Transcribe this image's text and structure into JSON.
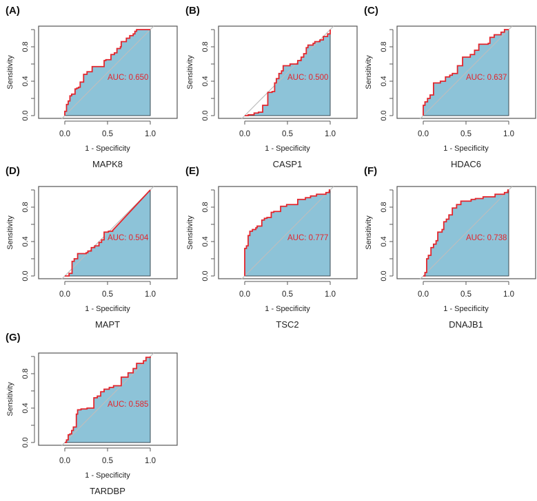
{
  "chart_data": [
    {
      "type": "line",
      "panel": "(A)",
      "title": "MAPK8",
      "auc": "AUC: 0.650",
      "xlabel": "1 - Specificity",
      "ylabel": "Sensitivity",
      "xticks": [
        "0.0",
        "0.5",
        "1.0"
      ],
      "yticks": [
        "0.0",
        "0.4",
        "0.8"
      ],
      "xlim": [
        0,
        1
      ],
      "ylim": [
        0,
        1
      ],
      "points": [
        [
          0,
          0
        ],
        [
          0,
          0.05
        ],
        [
          0.02,
          0.13
        ],
        [
          0.04,
          0.17
        ],
        [
          0.06,
          0.23
        ],
        [
          0.08,
          0.25
        ],
        [
          0.12,
          0.31
        ],
        [
          0.14,
          0.32
        ],
        [
          0.16,
          0.33
        ],
        [
          0.18,
          0.39
        ],
        [
          0.22,
          0.48
        ],
        [
          0.26,
          0.51
        ],
        [
          0.32,
          0.57
        ],
        [
          0.46,
          0.64
        ],
        [
          0.48,
          0.65
        ],
        [
          0.54,
          0.71
        ],
        [
          0.58,
          0.73
        ],
        [
          0.61,
          0.78
        ],
        [
          0.65,
          0.8
        ],
        [
          0.66,
          0.86
        ],
        [
          0.72,
          0.9
        ],
        [
          0.76,
          0.93
        ],
        [
          0.8,
          0.95
        ],
        [
          0.82,
          0.98
        ],
        [
          0.84,
          1
        ],
        [
          1,
          1
        ]
      ]
    },
    {
      "type": "line",
      "panel": "(B)",
      "title": "CASP1",
      "auc": "AUC: 0.500",
      "xlabel": "1 - Specificity",
      "ylabel": "Sensitivity",
      "xticks": [
        "0.0",
        "0.5",
        "1.0"
      ],
      "yticks": [
        "0.0",
        "0.4",
        "0.8"
      ],
      "xlim": [
        0,
        1
      ],
      "ylim": [
        0,
        1
      ],
      "points": [
        [
          0,
          0
        ],
        [
          0.04,
          0.01
        ],
        [
          0.11,
          0.03
        ],
        [
          0.16,
          0.04
        ],
        [
          0.21,
          0.12
        ],
        [
          0.27,
          0.27
        ],
        [
          0.32,
          0.28
        ],
        [
          0.35,
          0.38
        ],
        [
          0.37,
          0.43
        ],
        [
          0.4,
          0.49
        ],
        [
          0.43,
          0.52
        ],
        [
          0.45,
          0.58
        ],
        [
          0.53,
          0.6
        ],
        [
          0.62,
          0.64
        ],
        [
          0.66,
          0.68
        ],
        [
          0.69,
          0.72
        ],
        [
          0.72,
          0.79
        ],
        [
          0.74,
          0.82
        ],
        [
          0.8,
          0.84
        ],
        [
          0.82,
          0.86
        ],
        [
          0.88,
          0.88
        ],
        [
          0.92,
          0.92
        ],
        [
          0.97,
          0.95
        ],
        [
          1,
          0.97
        ],
        [
          1,
          1
        ]
      ]
    },
    {
      "type": "line",
      "panel": "(C)",
      "title": "HDAC6",
      "auc": "AUC: 0.637",
      "xlabel": "1 - Specificity",
      "ylabel": "Sensitivity",
      "xticks": [
        "0.0",
        "0.5",
        "1.0"
      ],
      "yticks": [
        "0.0",
        "0.4",
        "0.8"
      ],
      "xlim": [
        0,
        1
      ],
      "ylim": [
        0,
        1
      ],
      "points": [
        [
          0,
          0
        ],
        [
          0,
          0.12
        ],
        [
          0.02,
          0.16
        ],
        [
          0.05,
          0.2
        ],
        [
          0.08,
          0.24
        ],
        [
          0.12,
          0.38
        ],
        [
          0.2,
          0.4
        ],
        [
          0.26,
          0.45
        ],
        [
          0.31,
          0.47
        ],
        [
          0.34,
          0.49
        ],
        [
          0.4,
          0.58
        ],
        [
          0.46,
          0.68
        ],
        [
          0.55,
          0.71
        ],
        [
          0.6,
          0.76
        ],
        [
          0.65,
          0.83
        ],
        [
          0.76,
          0.84
        ],
        [
          0.78,
          0.91
        ],
        [
          0.83,
          0.94
        ],
        [
          0.91,
          0.97
        ],
        [
          0.95,
          1
        ],
        [
          1,
          1
        ]
      ]
    },
    {
      "type": "line",
      "panel": "(D)",
      "title": "MAPT",
      "auc": "AUC: 0.504",
      "xlabel": "1 - Specificity",
      "ylabel": "Sensitivity",
      "xticks": [
        "0.0",
        "0.5",
        "1.0"
      ],
      "yticks": [
        "0.0",
        "0.4",
        "0.8"
      ],
      "xlim": [
        0,
        1
      ],
      "ylim": [
        0,
        1
      ],
      "linear_tail": true,
      "points": [
        [
          0,
          0
        ],
        [
          0.05,
          0.03
        ],
        [
          0.085,
          0.17
        ],
        [
          0.11,
          0.2
        ],
        [
          0.15,
          0.26
        ],
        [
          0.25,
          0.27
        ],
        [
          0.27,
          0.29
        ],
        [
          0.31,
          0.33
        ],
        [
          0.35,
          0.35
        ],
        [
          0.4,
          0.39
        ],
        [
          0.43,
          0.42
        ],
        [
          0.46,
          0.51
        ],
        [
          0.51,
          0.52
        ],
        [
          0.56,
          0.53
        ],
        [
          1,
          1
        ]
      ]
    },
    {
      "type": "line",
      "panel": "(E)",
      "title": "TSC2",
      "auc": "AUC: 0.777",
      "xlabel": "1 - Specificity",
      "ylabel": "Sensitivity",
      "xticks": [
        "0.0",
        "0.5",
        "1.0"
      ],
      "yticks": [
        "0.0",
        "0.4",
        "0.8"
      ],
      "xlim": [
        0,
        1
      ],
      "ylim": [
        0,
        1
      ],
      "points": [
        [
          0,
          0
        ],
        [
          0,
          0.32
        ],
        [
          0.02,
          0.35
        ],
        [
          0.04,
          0.47
        ],
        [
          0.06,
          0.52
        ],
        [
          0.09,
          0.54
        ],
        [
          0.13,
          0.56
        ],
        [
          0.145,
          0.58
        ],
        [
          0.2,
          0.65
        ],
        [
          0.23,
          0.67
        ],
        [
          0.26,
          0.68
        ],
        [
          0.31,
          0.74
        ],
        [
          0.34,
          0.75
        ],
        [
          0.42,
          0.81
        ],
        [
          0.49,
          0.83
        ],
        [
          0.62,
          0.89
        ],
        [
          0.71,
          0.91
        ],
        [
          0.77,
          0.93
        ],
        [
          0.84,
          0.95
        ],
        [
          0.95,
          0.97
        ],
        [
          0.99,
          1
        ],
        [
          1,
          1
        ]
      ]
    },
    {
      "type": "line",
      "panel": "(F)",
      "title": "DNAJB1",
      "auc": "AUC: 0.738",
      "xlabel": "1 - Specificity",
      "ylabel": "Sensitivity",
      "xticks": [
        "0.0",
        "0.5",
        "1.0"
      ],
      "yticks": [
        "0.0",
        "0.4",
        "0.8"
      ],
      "xlim": [
        0,
        1
      ],
      "ylim": [
        0,
        1
      ],
      "points": [
        [
          0,
          0
        ],
        [
          0.02,
          0.04
        ],
        [
          0.04,
          0.2
        ],
        [
          0.06,
          0.24
        ],
        [
          0.09,
          0.33
        ],
        [
          0.12,
          0.37
        ],
        [
          0.15,
          0.41
        ],
        [
          0.17,
          0.51
        ],
        [
          0.22,
          0.54
        ],
        [
          0.24,
          0.63
        ],
        [
          0.27,
          0.66
        ],
        [
          0.3,
          0.71
        ],
        [
          0.34,
          0.79
        ],
        [
          0.39,
          0.83
        ],
        [
          0.44,
          0.87
        ],
        [
          0.56,
          0.89
        ],
        [
          0.61,
          0.9
        ],
        [
          0.7,
          0.92
        ],
        [
          0.84,
          0.95
        ],
        [
          0.95,
          0.97
        ],
        [
          0.99,
          1
        ],
        [
          1,
          1
        ]
      ]
    },
    {
      "type": "line",
      "panel": "(G)",
      "title": "TARDBP",
      "auc": "AUC: 0.585",
      "xlabel": "1 - Specificity",
      "ylabel": "Sensitivity",
      "xticks": [
        "0.0",
        "0.5",
        "1.0"
      ],
      "yticks": [
        "0.0",
        "0.4",
        "0.8"
      ],
      "xlim": [
        0,
        1
      ],
      "ylim": [
        0,
        1
      ],
      "points": [
        [
          0,
          0
        ],
        [
          0.02,
          0.03
        ],
        [
          0.04,
          0.09
        ],
        [
          0.06,
          0.1
        ],
        [
          0.08,
          0.14
        ],
        [
          0.1,
          0.18
        ],
        [
          0.135,
          0.33
        ],
        [
          0.15,
          0.38
        ],
        [
          0.19,
          0.39
        ],
        [
          0.26,
          0.4
        ],
        [
          0.34,
          0.52
        ],
        [
          0.38,
          0.54
        ],
        [
          0.42,
          0.59
        ],
        [
          0.46,
          0.62
        ],
        [
          0.52,
          0.64
        ],
        [
          0.57,
          0.66
        ],
        [
          0.66,
          0.76
        ],
        [
          0.74,
          0.81
        ],
        [
          0.8,
          0.86
        ],
        [
          0.84,
          0.92
        ],
        [
          0.92,
          0.95
        ],
        [
          0.95,
          0.99
        ],
        [
          1,
          1
        ]
      ]
    }
  ],
  "colors": {
    "fill": "#8dc3d8",
    "curve": "#e3242b",
    "diagonal": "#bdbdbd",
    "axis": "#555555",
    "text": "#222222",
    "auc_text": "#e3242b"
  }
}
